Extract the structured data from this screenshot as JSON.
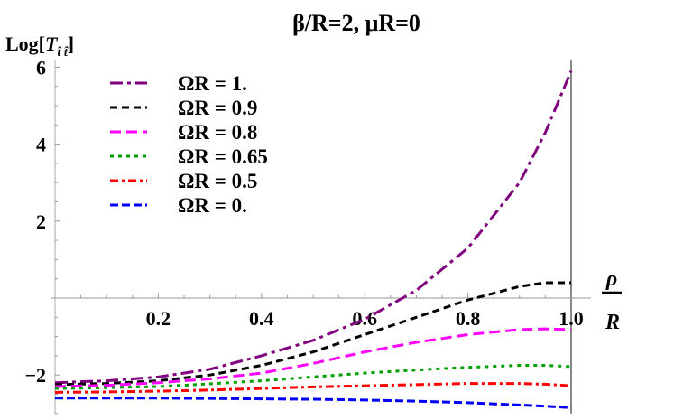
{
  "chart_data": {
    "type": "line",
    "title": "β/R=2,  μR=0",
    "ylabel": "Log[T_t̂t̂]",
    "xlabel_num": "ρ",
    "xlabel_den": "R",
    "xlim": [
      0,
      1.0
    ],
    "ylim": [
      -3.0,
      6.2
    ],
    "xticks": [
      0.2,
      0.4,
      0.6,
      0.8,
      1.0
    ],
    "xtick_labels": [
      "0.2",
      "0.4",
      "0.6",
      "0.8",
      "1.0"
    ],
    "yticks": [
      -2,
      2,
      4,
      6
    ],
    "ytick_labels": [
      "−2",
      "2",
      "4",
      "6"
    ],
    "legend_placement": "top-left",
    "grid": false,
    "x": [
      0,
      0.1,
      0.2,
      0.3,
      0.4,
      0.5,
      0.6,
      0.7,
      0.8,
      0.9,
      0.95,
      1.0
    ],
    "series": [
      {
        "name": "ΩR = 1.",
        "color": "#800080",
        "dash": "14,5,4,5",
        "values": [
          -2.2,
          -2.15,
          -2.05,
          -1.85,
          -1.5,
          -1.1,
          -0.55,
          0.2,
          1.3,
          3.0,
          4.3,
          5.9
        ]
      },
      {
        "name": "ΩR = 0.9",
        "color": "#000000",
        "dash": "8,5",
        "values": [
          -2.25,
          -2.22,
          -2.15,
          -2.0,
          -1.75,
          -1.4,
          -0.95,
          -0.5,
          -0.05,
          0.3,
          0.4,
          0.4
        ]
      },
      {
        "name": "ΩR = 0.8",
        "color": "#ff00ff",
        "dash": "12,6",
        "values": [
          -2.3,
          -2.27,
          -2.2,
          -2.1,
          -1.95,
          -1.7,
          -1.4,
          -1.15,
          -0.95,
          -0.82,
          -0.8,
          -0.82
        ]
      },
      {
        "name": "ΩR = 0.65",
        "color": "#00a000",
        "dash": "4,5",
        "values": [
          -2.35,
          -2.33,
          -2.3,
          -2.23,
          -2.15,
          -2.05,
          -1.95,
          -1.87,
          -1.8,
          -1.75,
          -1.75,
          -1.78
        ]
      },
      {
        "name": "ΩR = 0.5",
        "color": "#ff0000",
        "dash": "9,4,3,4",
        "values": [
          -2.45,
          -2.44,
          -2.42,
          -2.39,
          -2.35,
          -2.31,
          -2.28,
          -2.25,
          -2.22,
          -2.22,
          -2.24,
          -2.28
        ]
      },
      {
        "name": "ΩR = 0.",
        "color": "#0000ff",
        "dash": "9,4",
        "values": [
          -2.6,
          -2.6,
          -2.6,
          -2.61,
          -2.62,
          -2.63,
          -2.65,
          -2.68,
          -2.72,
          -2.78,
          -2.81,
          -2.85
        ]
      }
    ]
  }
}
